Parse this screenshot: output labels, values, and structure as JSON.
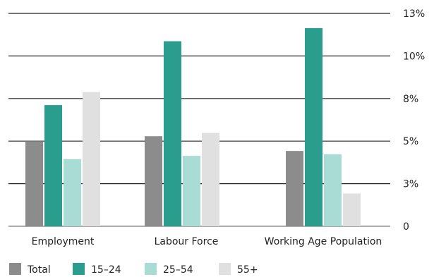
{
  "chart_data": {
    "type": "bar",
    "categories": [
      "Employment",
      "Labour Force",
      "Working Age Population"
    ],
    "series": [
      {
        "name": "Total",
        "values": [
          5.2,
          5.5,
          4.6
        ],
        "color": "#8c8c8c"
      },
      {
        "name": "15–24",
        "values": [
          7.4,
          11.3,
          12.1
        ],
        "color": "#2a9d8f"
      },
      {
        "name": "25–54",
        "values": [
          4.1,
          4.3,
          4.4
        ],
        "color": "#a9dcd4"
      },
      {
        "name": "55+",
        "values": [
          8.2,
          5.7,
          2.0
        ],
        "color": "#e0e0e0"
      }
    ],
    "y_ticks": [
      {
        "value": 0,
        "label": "0"
      },
      {
        "value": 2.6,
        "label": "3%"
      },
      {
        "value": 5.2,
        "label": "5%"
      },
      {
        "value": 7.8,
        "label": "8%"
      },
      {
        "value": 10.4,
        "label": "10%"
      },
      {
        "value": 13.0,
        "label": "13%"
      }
    ],
    "ylim": [
      0,
      13
    ],
    "grid": true,
    "y_axis_side": "right",
    "legend_position": "bottom-left"
  }
}
